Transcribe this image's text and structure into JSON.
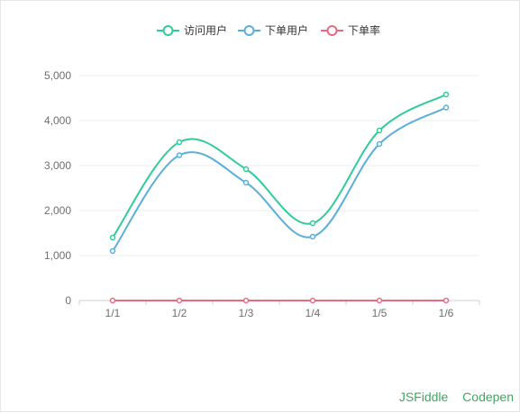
{
  "links": {
    "jsfiddle": "JSFiddle",
    "codepen": "Codepen"
  },
  "chart_data": {
    "type": "line",
    "smooth": true,
    "categories": [
      "1/1",
      "1/2",
      "1/3",
      "1/4",
      "1/5",
      "1/6"
    ],
    "y_ticks": [
      "0",
      "1,000",
      "2,000",
      "3,000",
      "4,000",
      "5,000"
    ],
    "ylim": [
      0,
      5000
    ],
    "grid": true,
    "legend_position": "top-center",
    "series": [
      {
        "name": "访问用户",
        "color": "#2ecc9a",
        "values": [
          1400,
          3520,
          2920,
          1720,
          3780,
          4580
        ]
      },
      {
        "name": "下单用户",
        "color": "#5aaedc",
        "values": [
          1100,
          3230,
          2620,
          1420,
          3480,
          4290
        ]
      },
      {
        "name": "下单率",
        "color": "#e86a80",
        "values": [
          0,
          0,
          0,
          0,
          0,
          0
        ]
      }
    ]
  }
}
